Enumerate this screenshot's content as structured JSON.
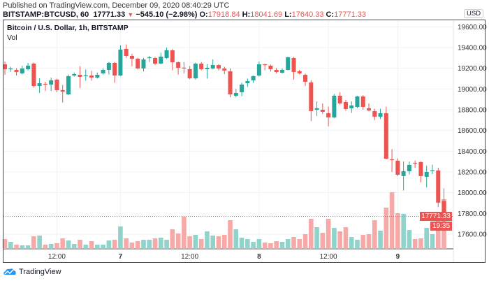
{
  "header": {
    "published": "Published on TradingView.com, December 09, 2020 08:40:29 UTC",
    "symbol": "BITSTAMP:BTCUSD, 60",
    "last": "17771.33",
    "change": "−545.10 (−2.98%)",
    "o_label": "O:",
    "o": "17918.84",
    "h_label": "H:",
    "h": "18041.69",
    "l_label": "L:",
    "l": "17640.33",
    "c_label": "C:",
    "c": "17771.33"
  },
  "legend": {
    "title": "Bitcoin / U.S. Dollar, 1h, BITSTAMP",
    "vol": "Vol"
  },
  "currency": "USD",
  "last_price_label": "17771.33",
  "countdown": "19:35",
  "footer": {
    "brand": "TradingView"
  },
  "colors": {
    "up": "#26a69a",
    "down": "#ef5350",
    "vol_up": "#8fd3cb",
    "vol_down": "#f7a9a7"
  },
  "chart_data": {
    "type": "candlestick",
    "title": "Bitcoin / U.S. Dollar, 1h, BITSTAMP",
    "ylim": [
      17450,
      19650
    ],
    "y_ticks": [
      "19600.00",
      "19400.00",
      "19200.00",
      "19000.00",
      "18800.00",
      "18600.00",
      "18400.00",
      "18200.00",
      "18000.00",
      "17800.00",
      "17600.00"
    ],
    "y_tick_values": [
      19600,
      19400,
      19200,
      19000,
      18800,
      18600,
      18400,
      18200,
      18000,
      17800,
      17600
    ],
    "x_labels": [
      {
        "label": "12:00",
        "index": 9
      },
      {
        "label": "7",
        "index": 20
      },
      {
        "label": "12:00",
        "index": 32
      },
      {
        "label": "8",
        "index": 44
      },
      {
        "label": "12:00",
        "index": 56
      },
      {
        "label": "9",
        "index": 68
      }
    ],
    "last_price": 17771.33,
    "ohlc": [
      [
        19238,
        19265,
        19137,
        19191
      ],
      [
        19191,
        19215,
        19165,
        19198
      ],
      [
        19184,
        19200,
        19130,
        19164
      ],
      [
        19151,
        19225,
        19140,
        19198
      ],
      [
        19191,
        19252,
        19180,
        19225
      ],
      [
        19245,
        19255,
        19015,
        19029
      ],
      [
        19029,
        19103,
        18962,
        19056
      ],
      [
        19050,
        19070,
        18980,
        19043
      ],
      [
        19043,
        19110,
        18980,
        19083
      ],
      [
        19090,
        19100,
        18970,
        18989
      ],
      [
        18989,
        19040,
        18870,
        18975
      ],
      [
        18948,
        19140,
        18940,
        19124
      ],
      [
        19130,
        19160,
        19120,
        19144
      ],
      [
        19137,
        19220,
        19010,
        19117
      ],
      [
        19128,
        19190,
        19080,
        19132
      ],
      [
        19130,
        19175,
        19080,
        19110
      ],
      [
        19110,
        19160,
        19100,
        19137
      ],
      [
        19151,
        19200,
        19140,
        19184
      ],
      [
        19184,
        19260,
        19140,
        19252
      ],
      [
        19252,
        19260,
        19060,
        19130
      ],
      [
        19130,
        19420,
        19125,
        19380
      ],
      [
        19387,
        19430,
        19300,
        19319
      ],
      [
        19319,
        19340,
        19220,
        19292
      ],
      [
        19292,
        19300,
        19190,
        19198
      ],
      [
        19198,
        19300,
        19170,
        19285
      ],
      [
        19299,
        19320,
        19260,
        19306
      ],
      [
        19299,
        19310,
        19230,
        19245
      ],
      [
        19245,
        19350,
        19240,
        19312
      ],
      [
        19299,
        19400,
        19290,
        19373
      ],
      [
        19373,
        19385,
        19180,
        19258
      ],
      [
        19258,
        19265,
        19140,
        19204
      ],
      [
        19206,
        19260,
        19150,
        19202
      ],
      [
        19191,
        19220,
        19095,
        19103
      ],
      [
        19103,
        19255,
        19090,
        19245
      ],
      [
        19245,
        19260,
        19180,
        19191
      ],
      [
        19191,
        19240,
        19100,
        19204
      ],
      [
        19198,
        19285,
        19190,
        19231
      ],
      [
        19231,
        19240,
        19180,
        19198
      ],
      [
        19198,
        19215,
        19145,
        19178
      ],
      [
        19171,
        19200,
        18920,
        18948
      ],
      [
        18935,
        19000,
        18920,
        18962
      ],
      [
        18969,
        19060,
        18930,
        19043
      ],
      [
        19056,
        19100,
        19020,
        19076
      ],
      [
        19083,
        19130,
        19060,
        19124
      ],
      [
        19130,
        19265,
        19120,
        19238
      ],
      [
        19238,
        19245,
        19180,
        19231
      ],
      [
        19225,
        19235,
        19170,
        19191
      ],
      [
        19184,
        19205,
        19150,
        19164
      ],
      [
        19157,
        19200,
        19150,
        19184
      ],
      [
        19184,
        19310,
        19180,
        19306
      ],
      [
        19299,
        19310,
        19090,
        19164
      ],
      [
        19171,
        19185,
        19140,
        19151
      ],
      [
        19137,
        19150,
        19030,
        19070
      ],
      [
        19063,
        19085,
        18690,
        18787
      ],
      [
        18800,
        18880,
        18740,
        18814
      ],
      [
        18800,
        18860,
        18760,
        18780
      ],
      [
        18766,
        18830,
        18640,
        18726
      ],
      [
        18726,
        18950,
        18720,
        18935
      ],
      [
        18935,
        18970,
        18850,
        18861
      ],
      [
        18874,
        18895,
        18790,
        18807
      ],
      [
        18814,
        18880,
        18770,
        18841
      ],
      [
        18827,
        18935,
        18815,
        18928
      ],
      [
        18928,
        18940,
        18800,
        18827
      ],
      [
        18814,
        18860,
        18785,
        18793
      ],
      [
        18787,
        18810,
        18700,
        18733
      ],
      [
        18733,
        18810,
        18710,
        18766
      ],
      [
        18766,
        18830,
        18320,
        18328
      ],
      [
        18322,
        18420,
        18200,
        18315
      ],
      [
        18308,
        18330,
        18160,
        18173
      ],
      [
        18160,
        18300,
        18020,
        18207
      ],
      [
        18207,
        18300,
        18175,
        18268
      ],
      [
        18288,
        18310,
        18240,
        18281
      ],
      [
        18295,
        18300,
        18100,
        18160
      ],
      [
        18153,
        18260,
        18050,
        18200
      ],
      [
        18212,
        18270,
        18180,
        18216
      ],
      [
        18214,
        18240,
        17860,
        17904
      ],
      [
        17918.84,
        18041.69,
        17640.33,
        17771.33
      ]
    ],
    "volume": [
      14,
      10,
      6,
      5,
      5,
      18,
      19,
      6,
      7,
      8,
      15,
      12,
      7,
      13,
      6,
      11,
      6,
      6,
      12,
      13,
      32,
      15,
      9,
      11,
      13,
      13,
      15,
      16,
      13,
      28,
      22,
      46,
      18,
      20,
      14,
      25,
      19,
      18,
      20,
      41,
      28,
      16,
      14,
      10,
      14,
      9,
      8,
      11,
      10,
      14,
      17,
      14,
      21,
      43,
      31,
      23,
      43,
      30,
      25,
      31,
      17,
      13,
      20,
      21,
      41,
      26,
      59,
      81,
      51,
      50,
      27,
      14,
      15,
      30,
      21,
      53,
      71
    ]
  }
}
